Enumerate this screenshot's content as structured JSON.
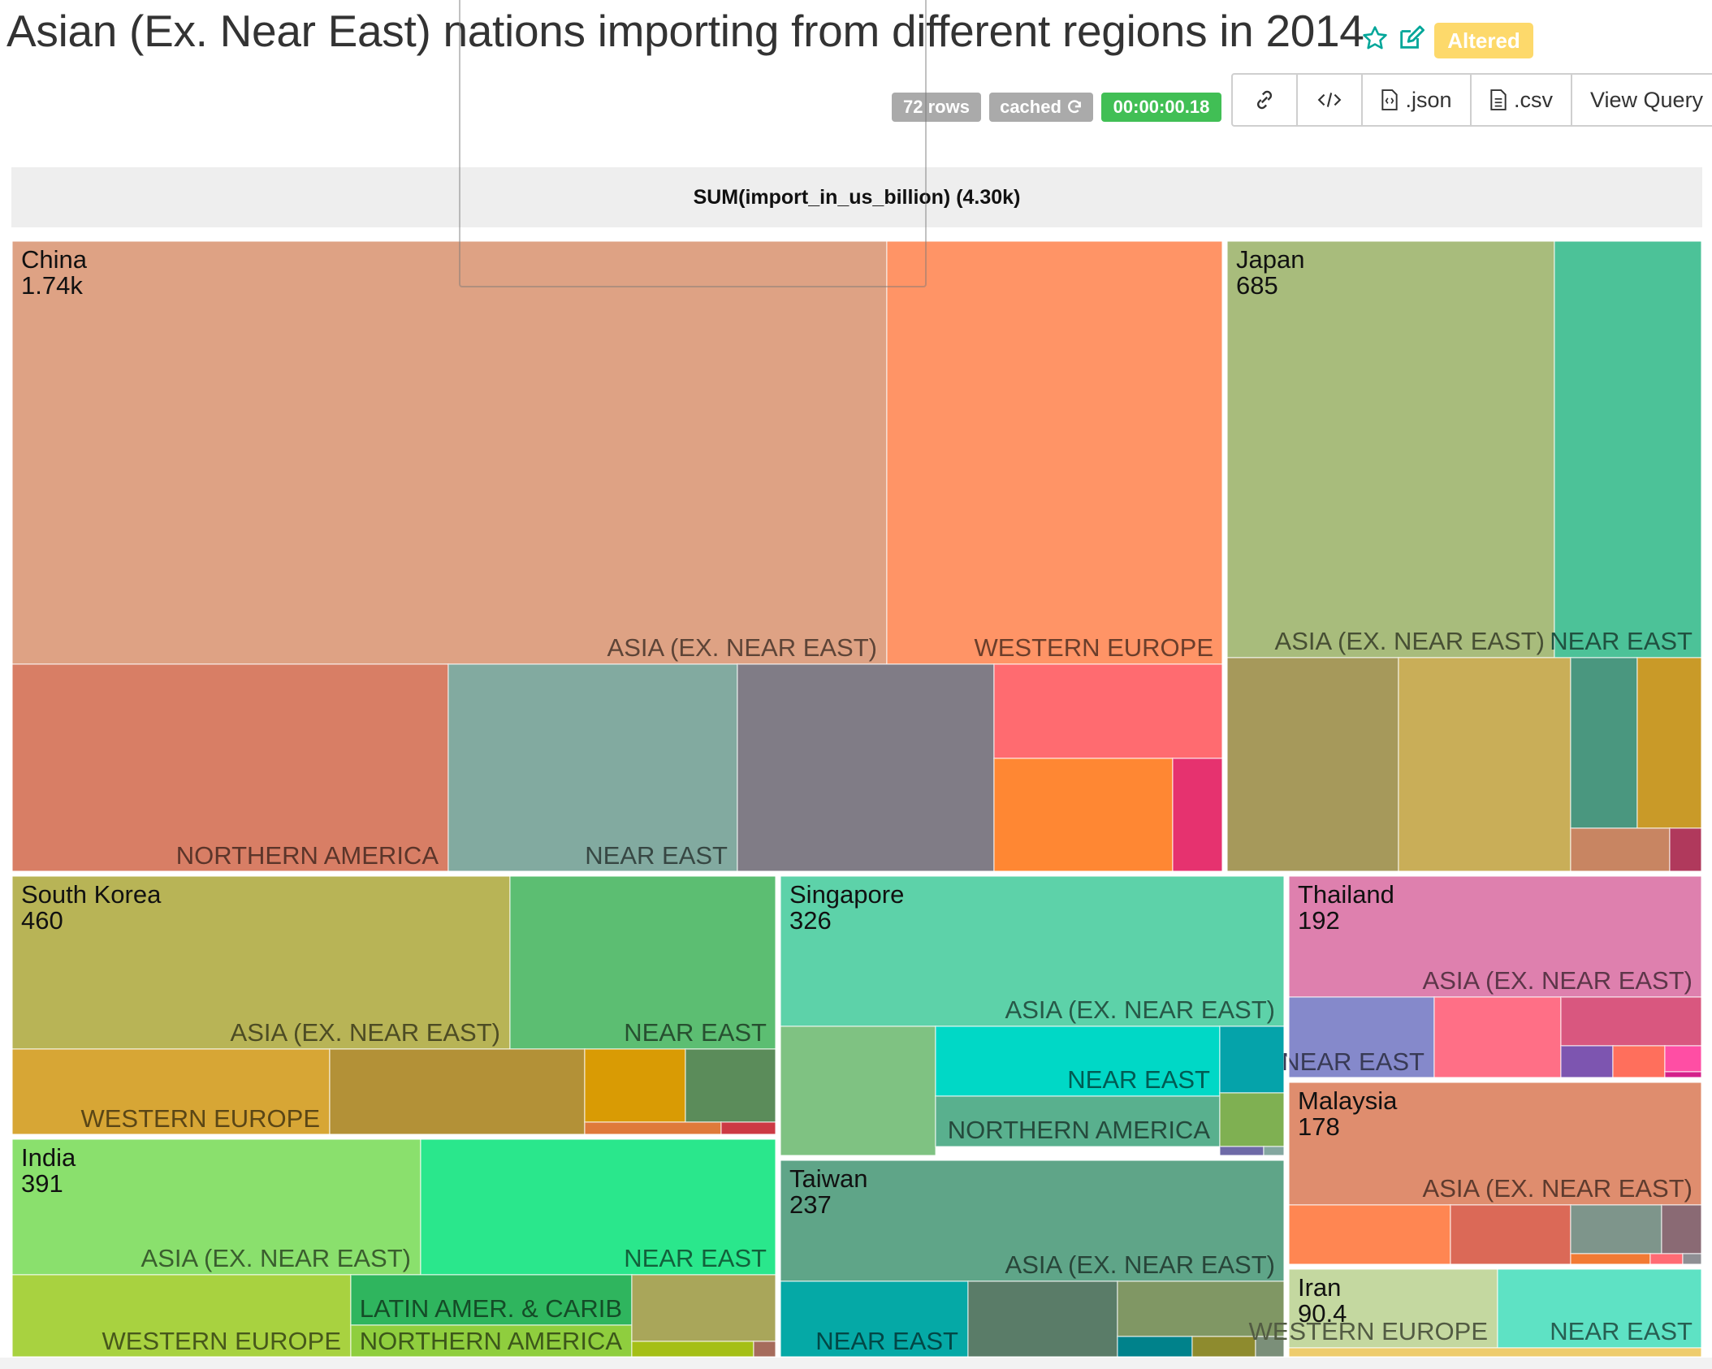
{
  "header": {
    "title": "Asian (Ex. Near East) nations importing from different regions in 2014",
    "altered_label": "Altered",
    "rows_label": "72 rows",
    "cached_label": "cached",
    "duration_label": "00:00:00.18",
    "colors": {
      "rows": "#aaaaaa",
      "cached": "#aaaaaa",
      "duration": "#41bf55",
      "altered": "#fdd96b",
      "icons": "#00a699"
    }
  },
  "toolbar": {
    "json_label": ".json",
    "csv_label": ".csv",
    "view_query_label": "View Query",
    "icons": [
      "link-icon",
      "code-icon",
      "file-json-icon",
      "file-csv-icon"
    ]
  },
  "chart_data": {
    "type": "treemap",
    "title": "SUM(import_in_us_billion) (4.30k)",
    "countries": [
      {
        "name": "China",
        "value_label": "1.74k",
        "value": 1740,
        "regions": [
          {
            "label": "ASIA (EX. NEAR EAST)",
            "color": "#dea284"
          },
          {
            "label": "WESTERN EUROPE",
            "color": "#ff9466"
          },
          {
            "label": "NORTHERN AMERICA",
            "color": "#d87e65"
          },
          {
            "label": "NEAR EAST",
            "color": "#82aaa0"
          },
          {
            "label": "",
            "color": "#807c86"
          },
          {
            "label": "",
            "color": "#ff6b70"
          },
          {
            "label": "",
            "color": "#ff8733"
          },
          {
            "label": "",
            "color": "#e6326f"
          }
        ]
      },
      {
        "name": "Japan",
        "value_label": "685",
        "value": 685,
        "regions": [
          {
            "label": "ASIA (EX. NEAR EAST)",
            "color": "#a8bc7c"
          },
          {
            "label": "NEAR EAST",
            "color": "#4cc298"
          },
          {
            "label": "",
            "color": "#a6995b"
          },
          {
            "label": "",
            "color": "#c9ae58"
          },
          {
            "label": "",
            "color": "#4a977f"
          },
          {
            "label": "",
            "color": "#c99a28"
          },
          {
            "label": "",
            "color": "#c88562"
          },
          {
            "label": "",
            "color": "#b0395c"
          }
        ]
      },
      {
        "name": "South Korea",
        "value_label": "460",
        "value": 460,
        "regions": [
          {
            "label": "ASIA (EX. NEAR EAST)",
            "color": "#b8b456"
          },
          {
            "label": "NEAR EAST",
            "color": "#5cbe72"
          },
          {
            "label": "WESTERN EUROPE",
            "color": "#d7a635"
          },
          {
            "label": "",
            "color": "#b39137"
          },
          {
            "label": "",
            "color": "#d99b04"
          },
          {
            "label": "",
            "color": "#5b8c5a"
          },
          {
            "label": "",
            "color": "#df7a3a"
          },
          {
            "label": "",
            "color": "#cc3a44"
          }
        ]
      },
      {
        "name": "India",
        "value_label": "391",
        "value": 391,
        "regions": [
          {
            "label": "ASIA (EX. NEAR EAST)",
            "color": "#8ae06d"
          },
          {
            "label": "NEAR EAST",
            "color": "#2ae78c"
          },
          {
            "label": "WESTERN EUROPE",
            "color": "#a8d240"
          },
          {
            "label": "LATIN AMER. & CARIB",
            "color": "#2fb55e"
          },
          {
            "label": "NORTHERN AMERICA",
            "color": "#8fce3e"
          },
          {
            "label": "",
            "color": "#a9a65a"
          },
          {
            "label": "",
            "color": "#a5bf16"
          },
          {
            "label": "",
            "color": "#a66c5c"
          }
        ]
      },
      {
        "name": "Singapore",
        "value_label": "326",
        "value": 326,
        "regions": [
          {
            "label": "ASIA (EX. NEAR EAST)",
            "color": "#5dd2a9"
          },
          {
            "label": "",
            "color": "#7fc282"
          },
          {
            "label": "NEAR EAST",
            "color": "#00d8c6"
          },
          {
            "label": "NORTHERN AMERICA",
            "color": "#59b08e"
          },
          {
            "label": "",
            "color": "#05a3aa"
          },
          {
            "label": "",
            "color": "#7fb052"
          },
          {
            "label": "",
            "color": "#6e6aa7"
          },
          {
            "label": "",
            "color": "#84a7a0"
          }
        ]
      },
      {
        "name": "Taiwan",
        "value_label": "237",
        "value": 237,
        "regions": [
          {
            "label": "ASIA (EX. NEAR EAST)",
            "color": "#5fa588"
          },
          {
            "label": "NEAR EAST",
            "color": "#05a9a6"
          },
          {
            "label": "",
            "color": "#5a7c68"
          },
          {
            "label": "",
            "color": "#809764"
          },
          {
            "label": "",
            "color": "#00828b"
          },
          {
            "label": "",
            "color": "#8e8b2e"
          },
          {
            "label": "",
            "color": "#7b8f79"
          }
        ]
      },
      {
        "name": "Thailand",
        "value_label": "192",
        "value": 192,
        "regions": [
          {
            "label": "ASIA (EX. NEAR EAST)",
            "color": "#de80ae"
          },
          {
            "label": "NEAR EAST",
            "color": "#8589cb"
          },
          {
            "label": "",
            "color": "#ff6f86"
          },
          {
            "label": "",
            "color": "#d9577f"
          },
          {
            "label": "",
            "color": "#7d55b0"
          },
          {
            "label": "",
            "color": "#ff6f5c"
          },
          {
            "label": "",
            "color": "#ff4ea4"
          },
          {
            "label": "",
            "color": "#d4208a"
          }
        ]
      },
      {
        "name": "Malaysia",
        "value_label": "178",
        "value": 178,
        "regions": [
          {
            "label": "ASIA (EX. NEAR EAST)",
            "color": "#df8d6e"
          },
          {
            "label": "",
            "color": "#ff8652"
          },
          {
            "label": "",
            "color": "#db6957"
          },
          {
            "label": "",
            "color": "#7e958b"
          },
          {
            "label": "",
            "color": "#8a6a74"
          },
          {
            "label": "",
            "color": "#f27a34"
          },
          {
            "label": "",
            "color": "#ff6b74"
          },
          {
            "label": "",
            "color": "#8e8f94"
          }
        ]
      },
      {
        "name": "Iran",
        "value_label": "90.4",
        "value": 90.4,
        "regions": [
          {
            "label": "WESTERN EUROPE",
            "color": "#c4d8a0"
          },
          {
            "label": "NEAR EAST",
            "color": "#5ee2c4"
          },
          {
            "label": "",
            "color": "#eecc6d"
          }
        ]
      }
    ]
  }
}
